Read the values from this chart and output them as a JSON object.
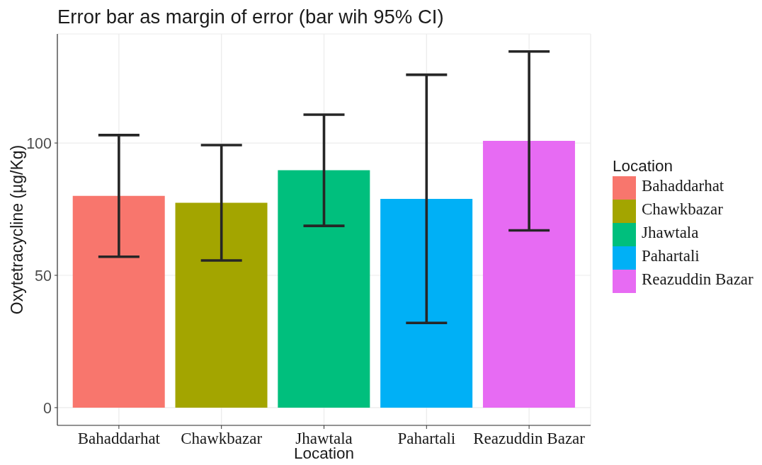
{
  "chart_data": {
    "type": "bar",
    "title": "Error bar as margin of error (bar wih 95% CI)",
    "xlabel": "Location",
    "ylabel": "Oxytetracycline (µg/Kg)",
    "legend_title": "Location",
    "categories": [
      "Bahaddarhat",
      "Chawkbazar",
      "Jhawtala",
      "Pahartali",
      "Reazuddin Bazar"
    ],
    "stacked": true,
    "series": [
      {
        "name": "Bahaddarhat",
        "color": "#f8766d",
        "values": [
          80.0,
          null,
          null,
          null,
          null
        ],
        "errors": [
          23.0,
          null,
          null,
          null,
          null
        ]
      },
      {
        "name": "Chawkbazar",
        "color": "#a3a500",
        "values": [
          null,
          77.4,
          null,
          null,
          null
        ],
        "errors": [
          null,
          21.8,
          null,
          null,
          null
        ]
      },
      {
        "name": "Jhawtala",
        "color": "#00bf7d",
        "values": [
          null,
          null,
          89.7,
          null,
          null
        ],
        "errors": [
          null,
          null,
          21.0,
          null,
          null
        ]
      },
      {
        "name": "Pahartali",
        "color": "#00b0f6",
        "values": [
          null,
          null,
          null,
          78.9,
          null
        ],
        "errors": [
          null,
          null,
          null,
          46.9,
          null
        ]
      },
      {
        "name": "Reazuddin Bazar",
        "color": "#e76bf3",
        "values": [
          null,
          null,
          null,
          null,
          100.8
        ],
        "errors": [
          null,
          null,
          null,
          null,
          33.8
        ]
      }
    ],
    "ylim": [
      -6.7,
      141.2
    ],
    "yticks": [
      0,
      50,
      100
    ],
    "grid": true,
    "legend": "right"
  }
}
